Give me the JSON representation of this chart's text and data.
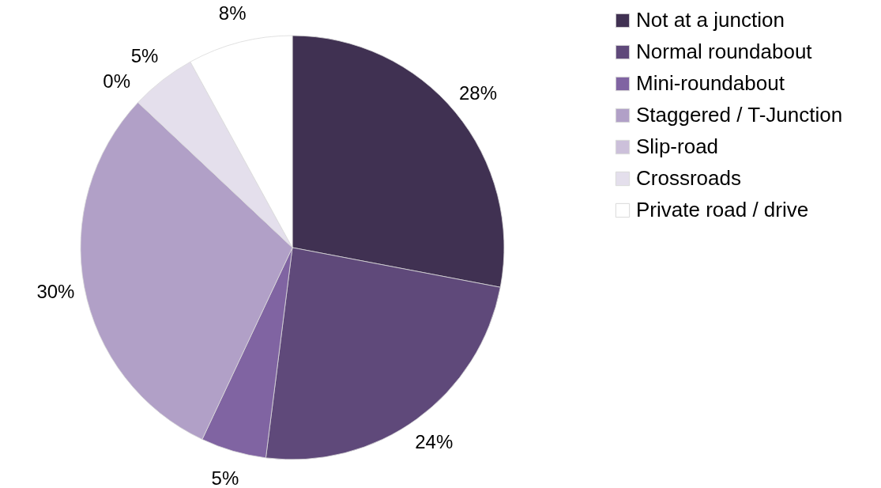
{
  "chart_data": {
    "type": "pie",
    "categories": [
      "Not at a junction",
      "Normal roundabout",
      "Mini-roundabout",
      "Staggered / T-Junction",
      "Slip-road",
      "Crossroads",
      "Private road / drive"
    ],
    "values": [
      28,
      24,
      5,
      30,
      0,
      5,
      8
    ],
    "value_labels": [
      "28%",
      "24%",
      "5%",
      "30%",
      "0%",
      "5%",
      "8%"
    ],
    "colors": [
      "#403152",
      "#5f497a",
      "#8064a2",
      "#b1a0c7",
      "#ccc0da",
      "#e4dfec",
      "#ffffff"
    ],
    "legend": "right"
  }
}
